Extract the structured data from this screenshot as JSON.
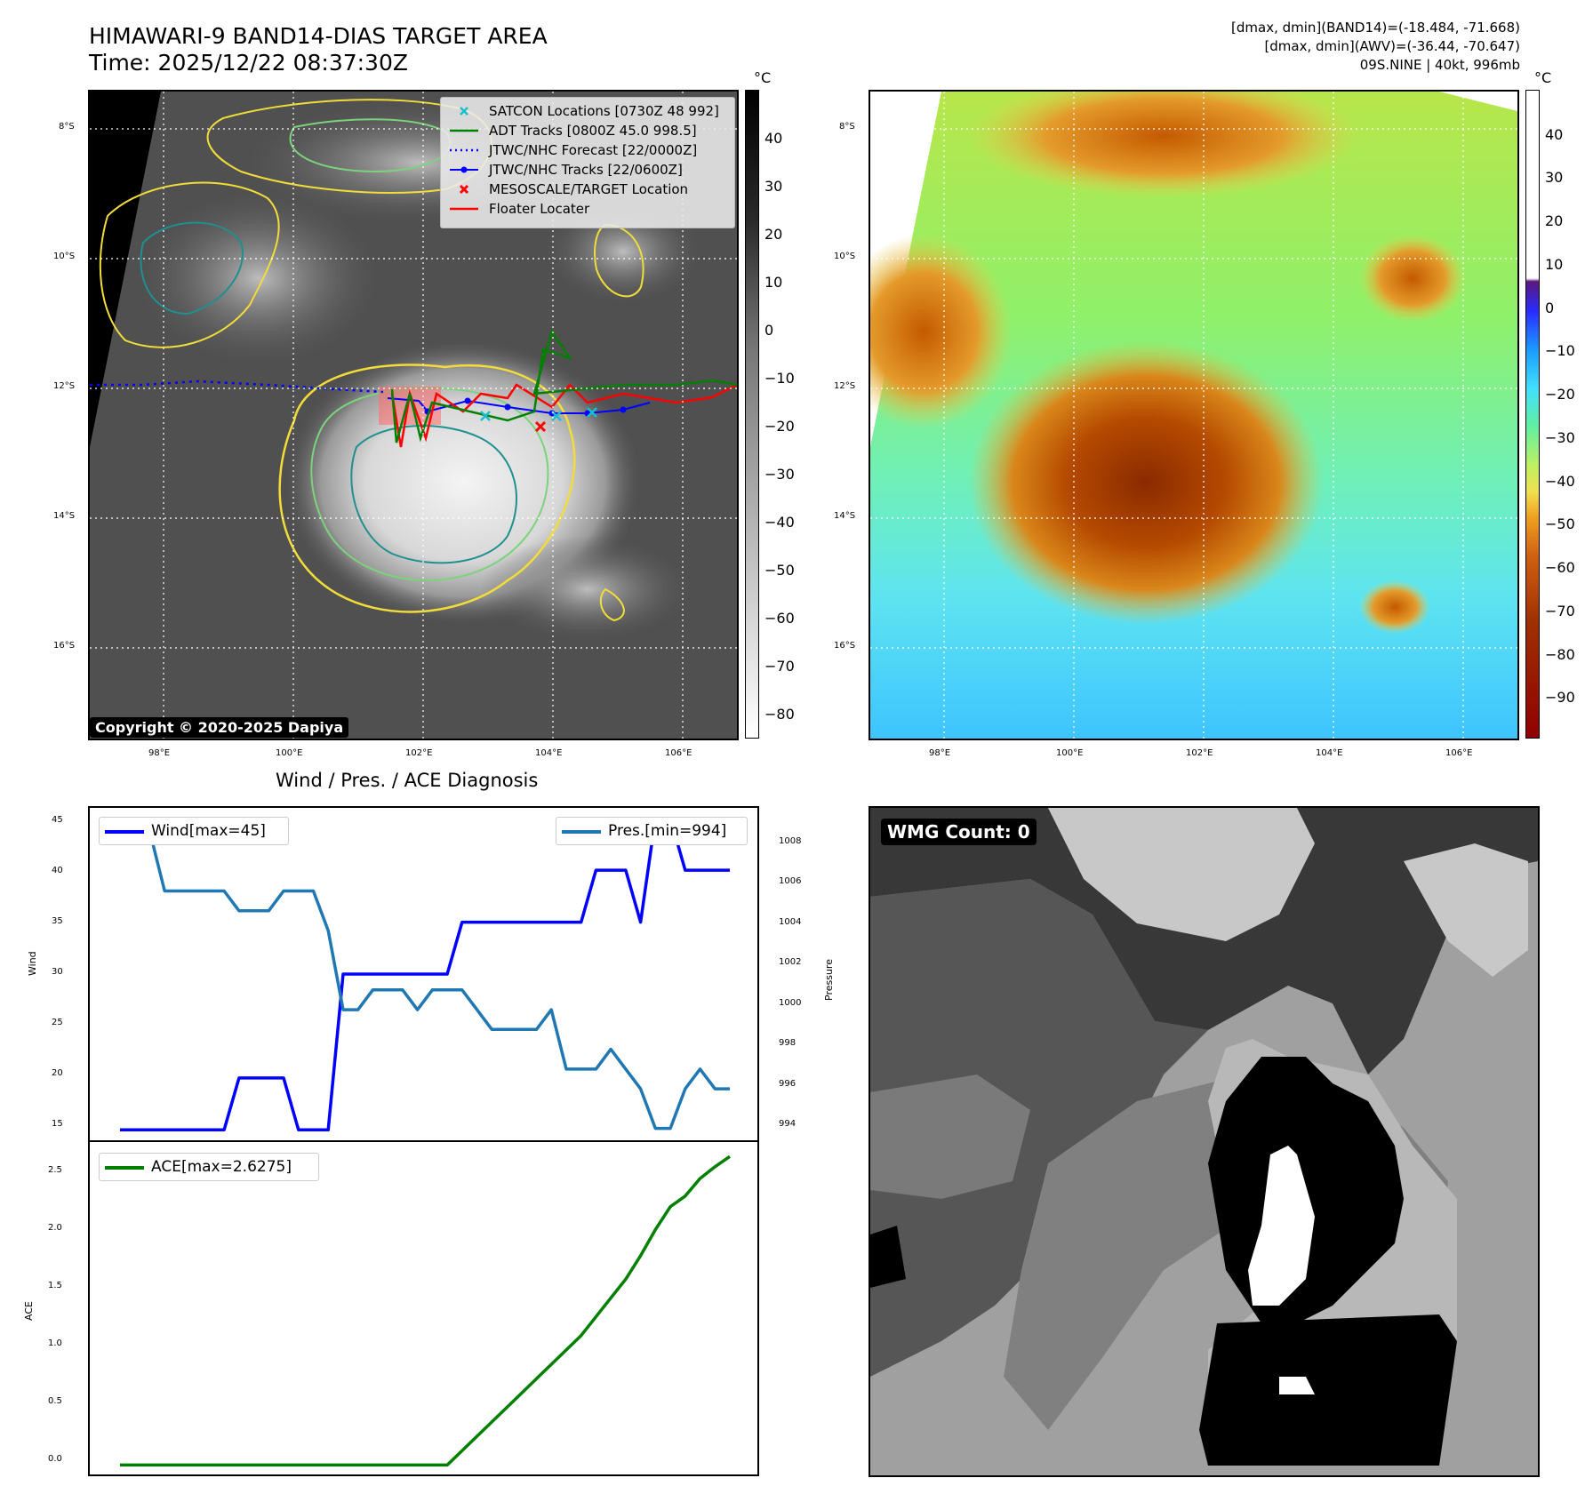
{
  "header": {
    "title_line1": "HIMAWARI-9 BAND14-DIAS TARGET AREA",
    "title_line2": "Time: 2025/12/22 08:37:30Z",
    "stats_line1": "[dmax, dmin](BAND14)=(-18.484, -71.668)",
    "stats_line2": "[dmax, dmin](AWV)=(-36.44, -70.647)",
    "stats_line3": "09S.NINE | 40kt, 996mb"
  },
  "map": {
    "lat_labels": [
      "8°S",
      "10°S",
      "12°S",
      "14°S",
      "16°S"
    ],
    "lon_labels": [
      "98°E",
      "100°E",
      "102°E",
      "104°E",
      "106°E"
    ],
    "copyright": "Copyright © 2020-2025 Dapiya",
    "legend": [
      {
        "label": "SATCON Locations [0730Z 48 992]",
        "color": "#17becf",
        "symbol": "x"
      },
      {
        "label": "ADT Tracks [0800Z 45.0 998.5]",
        "color": "#008000",
        "symbol": "line"
      },
      {
        "label": "JTWC/NHC Forecast [22/0000Z]",
        "color": "#0000ff",
        "symbol": "dotted"
      },
      {
        "label": "JTWC/NHC Tracks [22/0600Z]",
        "color": "#0000ff",
        "symbol": "line-dot"
      },
      {
        "label": "MESOSCALE/TARGET Location",
        "color": "#ff0000",
        "symbol": "x"
      },
      {
        "label": "Floater Locater",
        "color": "#ff0000",
        "symbol": "line"
      }
    ]
  },
  "colorbar_ir": {
    "unit": "°C",
    "ticks": [
      "40",
      "30",
      "20",
      "10",
      "0",
      "−10",
      "−20",
      "−30",
      "−40",
      "−50",
      "−60",
      "−70",
      "−80"
    ]
  },
  "colorbar_awv": {
    "unit": "°C",
    "ticks": [
      "40",
      "30",
      "20",
      "10",
      "0",
      "−10",
      "−20",
      "−30",
      "−40",
      "−50",
      "−60",
      "−70",
      "−80",
      "−90"
    ]
  },
  "diagnosis": {
    "title": "Wind / Pres. / ACE Diagnosis",
    "wind_axis_label": "Wind",
    "pressure_axis_label": "Pressure",
    "ace_axis_label": "ACE",
    "wind_legend": "Wind[max=45]",
    "pres_legend": "Pres.[min=994]",
    "ace_legend": "ACE[max=2.6275]",
    "wind_ticks": [
      "45",
      "40",
      "35",
      "30",
      "25",
      "20",
      "15"
    ],
    "pres_ticks": [
      "1008",
      "1006",
      "1004",
      "1002",
      "1000",
      "998",
      "996",
      "994"
    ],
    "ace_ticks": [
      "2.5",
      "2.0",
      "1.5",
      "1.0",
      "0.5",
      "0.0"
    ]
  },
  "wmg": {
    "label": "WMG Count: 0"
  },
  "chart_data": [
    {
      "type": "line",
      "title": "Wind / Pres. / ACE Diagnosis",
      "ylabel": "Wind",
      "ylim": [
        14,
        46
      ],
      "x": [
        0,
        1,
        2,
        3,
        4,
        5,
        6,
        7,
        8,
        9,
        10,
        11,
        12,
        13,
        14,
        15,
        16,
        17,
        18,
        19,
        20,
        21,
        22,
        23,
        24,
        25,
        26,
        27,
        28,
        29,
        30,
        31,
        32,
        33,
        34,
        35,
        36,
        37,
        38,
        39,
        40,
        41
      ],
      "series": [
        {
          "name": "Wind[max=45]",
          "color": "#0000ff",
          "values": [
            15,
            15,
            15,
            15,
            15,
            15,
            15,
            15,
            20,
            20,
            20,
            20,
            15,
            15,
            15,
            30,
            30,
            30,
            30,
            30,
            30,
            30,
            30,
            35,
            35,
            35,
            35,
            35,
            35,
            35,
            35,
            35,
            40,
            40,
            40,
            35,
            45,
            45,
            40,
            40,
            40,
            40
          ]
        }
      ]
    },
    {
      "type": "line",
      "ylabel": "Pressure",
      "ylim": [
        993.4,
        1010.2
      ],
      "x": [
        0,
        1,
        2,
        3,
        4,
        5,
        6,
        7,
        8,
        9,
        10,
        11,
        12,
        13,
        14,
        15,
        16,
        17,
        18,
        19,
        20,
        21,
        22,
        23,
        24,
        25,
        26,
        27,
        28,
        29,
        30,
        31,
        32,
        33,
        34,
        35,
        36,
        37,
        38,
        39,
        40,
        41
      ],
      "series": [
        {
          "name": "Pres.[min=994]",
          "color": "#1f77b4",
          "values": [
            1009,
            1009,
            1009,
            1006,
            1006,
            1006,
            1006,
            1006,
            1005,
            1005,
            1005,
            1006,
            1006,
            1006,
            1004,
            1000,
            1000,
            1001,
            1001,
            1001,
            1000,
            1001,
            1001,
            1001,
            1000,
            999,
            999,
            999,
            999,
            1000,
            997,
            997,
            997,
            998,
            997,
            996,
            994,
            994,
            996,
            997,
            996,
            996
          ]
        }
      ]
    },
    {
      "type": "line",
      "ylabel": "ACE",
      "ylim": [
        -0.08,
        2.75
      ],
      "x": [
        0,
        1,
        2,
        3,
        4,
        5,
        6,
        7,
        8,
        9,
        10,
        11,
        12,
        13,
        14,
        15,
        16,
        17,
        18,
        19,
        20,
        21,
        22,
        23,
        24,
        25,
        26,
        27,
        28,
        29,
        30,
        31,
        32,
        33,
        34,
        35,
        36,
        37,
        38,
        39,
        40,
        41
      ],
      "series": [
        {
          "name": "ACE[max=2.6275]",
          "color": "#008000",
          "values": [
            0,
            0,
            0,
            0,
            0,
            0,
            0,
            0,
            0,
            0,
            0,
            0,
            0,
            0,
            0,
            0,
            0,
            0,
            0,
            0,
            0,
            0,
            0,
            0.1225,
            0.245,
            0.3675,
            0.49,
            0.6125,
            0.735,
            0.8575,
            0.98,
            1.1025,
            1.2625,
            1.4225,
            1.5825,
            1.7825,
            2.005,
            2.2,
            2.29,
            2.44,
            2.54,
            2.6275
          ]
        }
      ]
    }
  ]
}
